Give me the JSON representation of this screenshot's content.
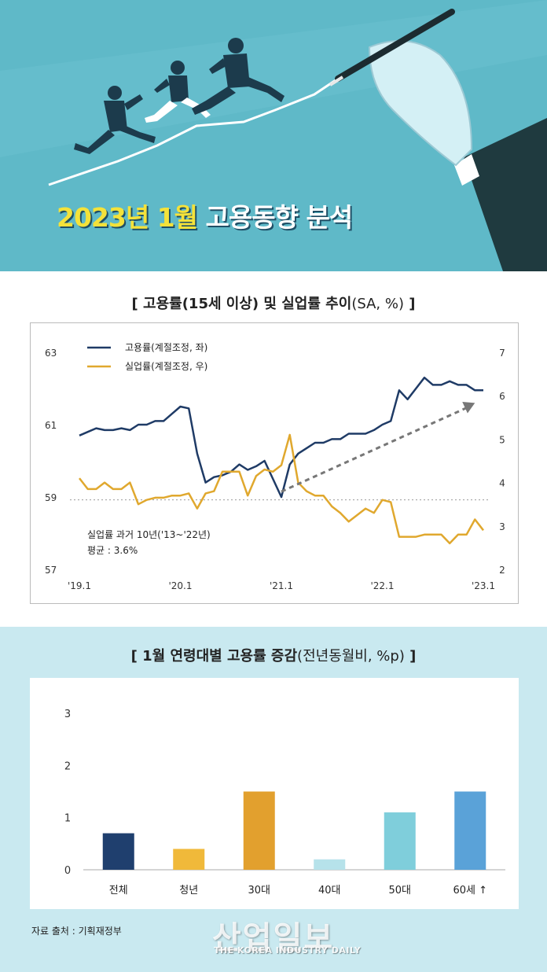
{
  "banner": {
    "title_highlight": "2023년 1월",
    "title_rest": "고용동향 분석",
    "colors": {
      "background": "#5fb9c8",
      "highlight": "#f4e23a"
    }
  },
  "chart1_title": {
    "bracket_open": "[",
    "bold": "고용률(15세 이상) 및 실업률 추이",
    "light": "(SA, %)",
    "bracket_close": "]"
  },
  "chart2_title": {
    "bracket_open": "[",
    "bold": "1월 연령대별 고용률 증감",
    "light": "(전년동월비, %p)",
    "bracket_close": "]"
  },
  "annotation": {
    "line1": "실업률 과거 10년('13~'22년)",
    "line2": "평균 : 3.6%"
  },
  "source": "자료 출처 : 기획재정부",
  "watermark": {
    "main": "산업일보",
    "sub": "THE KOREA INDUSTRY DAILY"
  },
  "chart_data": [
    {
      "type": "line",
      "title": "고용률(15세 이상) 및 실업률 추이(SA, %)",
      "x_tick_labels": [
        "'19.1",
        "'20.1",
        "'21.1",
        "'22.1",
        "'23.1"
      ],
      "y_left": {
        "ylim": [
          57,
          63
        ],
        "ticks": [
          "57",
          "59",
          "61",
          "63"
        ]
      },
      "y_right": {
        "ylim": [
          2,
          7
        ],
        "ticks": [
          "2",
          "3",
          "4",
          "5",
          "6",
          "7"
        ]
      },
      "average_line": {
        "axis": "right",
        "value": 3.6
      },
      "series": [
        {
          "name": "고용률(계절조정, 좌)",
          "axis": "left",
          "color": "#1f3b66",
          "values": [
            60.7,
            60.8,
            60.9,
            60.85,
            60.85,
            60.9,
            60.85,
            61.0,
            61.0,
            61.1,
            61.1,
            61.3,
            61.5,
            61.45,
            60.2,
            59.4,
            59.55,
            59.6,
            59.7,
            59.9,
            59.75,
            59.85,
            60.0,
            59.5,
            59.0,
            59.9,
            60.2,
            60.35,
            60.5,
            60.5,
            60.6,
            60.6,
            60.75,
            60.75,
            60.75,
            60.85,
            61.0,
            61.1,
            61.95,
            61.7,
            62.0,
            62.3,
            62.1,
            62.1,
            62.2,
            62.1,
            62.1,
            61.95,
            61.95
          ]
        },
        {
          "name": "실업률(계절조정, 우)",
          "axis": "right",
          "color": "#e0a82e",
          "values": [
            4.1,
            3.85,
            3.85,
            4.0,
            3.85,
            3.85,
            4.0,
            3.5,
            3.6,
            3.65,
            3.65,
            3.7,
            3.7,
            3.75,
            3.4,
            3.75,
            3.8,
            4.25,
            4.25,
            4.25,
            3.7,
            4.15,
            4.3,
            4.25,
            4.4,
            5.1,
            4.0,
            3.8,
            3.7,
            3.7,
            3.45,
            3.3,
            3.1,
            3.25,
            3.4,
            3.3,
            3.6,
            3.55,
            2.75,
            2.75,
            2.75,
            2.8,
            2.8,
            2.8,
            2.6,
            2.8,
            2.8,
            3.15,
            2.9
          ]
        }
      ],
      "trend_arrow": {
        "from_index": 24,
        "to_index": 47,
        "from_value_left": 59.15,
        "to_value_left": 61.6
      }
    },
    {
      "type": "bar",
      "title": "1월 연령대별 고용률 증감(전년동월비, %p)",
      "categories": [
        "전체",
        "청년",
        "30대",
        "40대",
        "50대",
        "60세 ↑"
      ],
      "values": [
        0.7,
        0.4,
        1.5,
        0.2,
        1.1,
        1.5
      ],
      "colors": [
        "#1f3f6e",
        "#f0b93a",
        "#e2a02e",
        "#b6e2ea",
        "#7fcedb",
        "#5aa2d8"
      ],
      "ylim": [
        0,
        3
      ],
      "y_ticks": [
        "0",
        "1",
        "2",
        "3"
      ]
    }
  ]
}
